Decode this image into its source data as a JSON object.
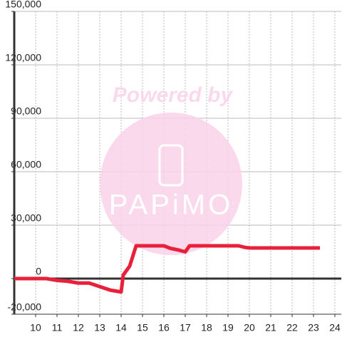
{
  "chart_data": {
    "type": "line",
    "x": [
      9,
      10.5,
      11,
      11.5,
      12,
      12.5,
      13,
      13.5,
      14,
      14.1,
      14.4,
      14.7,
      16,
      16.3,
      16.7,
      17,
      17.2,
      19.5,
      19.8,
      20,
      23.3
    ],
    "series": [
      {
        "color": "#e8203a",
        "values": [
          0,
          0,
          -1000,
          -1500,
          -2500,
          -2500,
          -4500,
          -6500,
          -7500,
          2000,
          7000,
          18400,
          18400,
          17000,
          16000,
          15000,
          18400,
          18400,
          17500,
          17200,
          17200
        ]
      }
    ],
    "xlim": [
      9,
      24.3
    ],
    "xticks": [
      10,
      11,
      12,
      13,
      14,
      15,
      16,
      17,
      18,
      19,
      20,
      21,
      22,
      23,
      24
    ],
    "ylim": [
      -20000,
      150000
    ],
    "yticks": [
      {
        "value": -20000,
        "label": "-20,000"
      },
      0,
      {
        "value": 30000,
        "label": "30,000"
      },
      {
        "value": 60000,
        "label": "60,000"
      },
      {
        "value": 90000,
        "label": "90,000"
      },
      {
        "value": 120000,
        "label": "120,000"
      },
      {
        "value": 150000,
        "label": "150,000"
      }
    ],
    "grid": true
  },
  "watermark": {
    "line1": "Powered by",
    "line2": "PAPiMO"
  }
}
